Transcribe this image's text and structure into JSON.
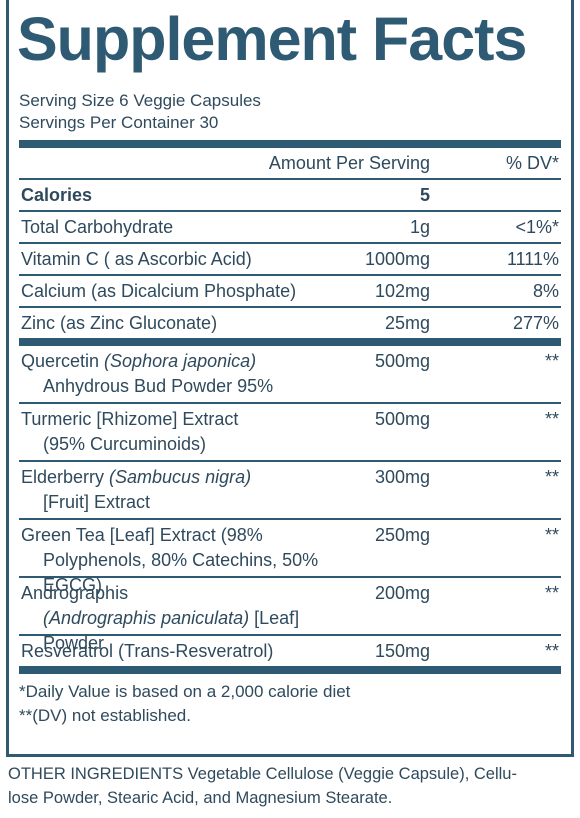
{
  "title": "Supplement Facts",
  "serving_size": "Serving Size 6 Veggie Capsules",
  "servings_per_container": "Servings Per Container 30",
  "header": {
    "amount": "Amount Per Serving",
    "dv": "% DV*"
  },
  "calories": {
    "label": "Calories",
    "amount": "5"
  },
  "nutrients": [
    {
      "label": "Total Carbohydrate",
      "amount": "1g",
      "dv": "<1%*"
    },
    {
      "label": "Vitamin C ( as Ascorbic Acid)",
      "amount": "1000mg",
      "dv": "1111%"
    },
    {
      "label": "Calcium (as Dicalcium Phosphate)",
      "amount": "102mg",
      "dv": "8%"
    },
    {
      "label": "Zinc (as Zinc Gluconate)",
      "amount": "25mg",
      "dv": "277%"
    }
  ],
  "ingredients": [
    {
      "lines": [
        [
          {
            "text": "Quercetin "
          },
          {
            "text": "(Sophora japonica)",
            "italic": true
          }
        ],
        [
          {
            "text": "Anhydrous Bud Powder 95%"
          }
        ]
      ],
      "amount": "500mg",
      "dv": "**"
    },
    {
      "lines": [
        [
          {
            "text": "Turmeric [Rhizome] Extract"
          }
        ],
        [
          {
            "text": "(95% Curcuminoids)"
          }
        ]
      ],
      "amount": "500mg",
      "dv": "**"
    },
    {
      "lines": [
        [
          {
            "text": "Elderberry "
          },
          {
            "text": "(Sambucus nigra)",
            "italic": true
          }
        ],
        [
          {
            "text": "[Fruit] Extract"
          }
        ]
      ],
      "amount": "300mg",
      "dv": "**"
    },
    {
      "lines": [
        [
          {
            "text": "Green Tea [Leaf] Extract (98%"
          }
        ],
        [
          {
            "text": "Polyphenols, 80% Catechins, 50% EGCG)"
          }
        ]
      ],
      "amount": "250mg",
      "dv": "**"
    },
    {
      "lines": [
        [
          {
            "text": "Andrographis"
          }
        ],
        [
          {
            "text": "(Andrographis paniculata)",
            "italic": true
          },
          {
            "text": " [Leaf] Powder"
          }
        ]
      ],
      "amount": "200mg",
      "dv": "**"
    },
    {
      "lines": [
        [
          {
            "text": "Resveratrol (Trans-Resveratrol)"
          }
        ]
      ],
      "amount": "150mg",
      "dv": "**"
    }
  ],
  "footnotes": [
    "*Daily Value is based on a 2,000 calorie diet",
    "**(DV) not established."
  ],
  "other_ingredients": [
    "OTHER INGREDIENTS Vegetable Cellulose (Veggie Capsule), Cellu-",
    "lose Powder, Stearic Acid, and Magnesium Stearate."
  ]
}
